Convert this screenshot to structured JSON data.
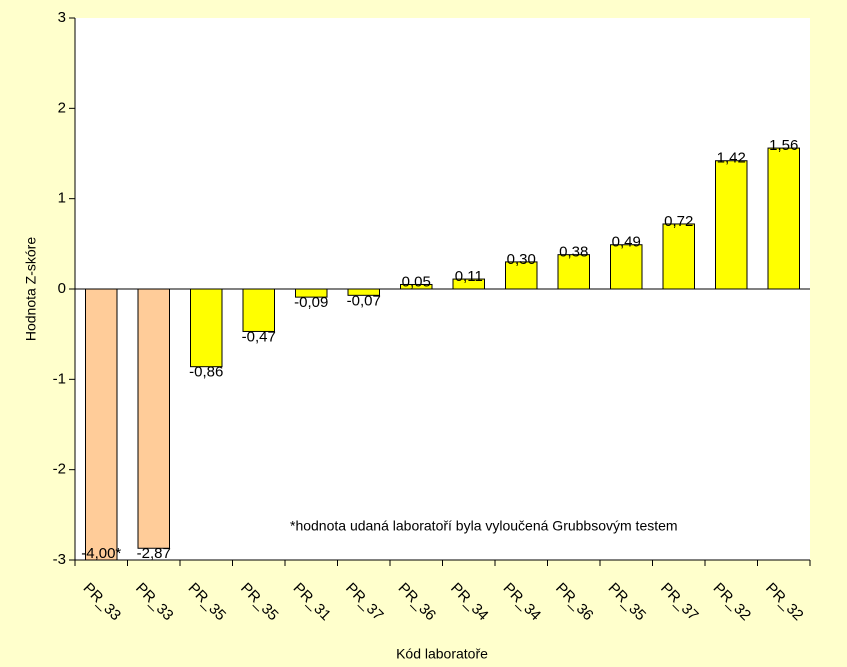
{
  "chart_data": {
    "type": "bar",
    "y_label": "Hodnota Z-skóre",
    "x_label": "Kód laboratoře",
    "annotation": "*hodnota udaná laboratoří byla vyloučená Grubbsovým testem",
    "categories": [
      "PR_33",
      "PR_33",
      "PR_35",
      "PR_35",
      "PR_31",
      "PR_37",
      "PR_36",
      "PR_34",
      "PR_34",
      "PR_36",
      "PR_35",
      "PR_37",
      "PR_32",
      "PR_32"
    ],
    "values": [
      -4.0,
      -2.87,
      -0.86,
      -0.47,
      -0.09,
      -0.07,
      0.05,
      0.11,
      0.3,
      0.38,
      0.49,
      0.72,
      1.42,
      1.56
    ],
    "value_labels": [
      "-4,00*",
      "-2,87",
      "-0,86",
      "-0,47",
      "-0,09",
      "-0,07",
      "0,05",
      "0,11",
      "0,30",
      "0,38",
      "0,49",
      "0,72",
      "1,42",
      "1,56"
    ],
    "colors": [
      "#FFCC99",
      "#FFCC99",
      "#FFFF00",
      "#FFFF00",
      "#FFFF00",
      "#FFFF00",
      "#FFFF00",
      "#FFFF00",
      "#FFFF00",
      "#FFFF00",
      "#FFFF00",
      "#FFFF00",
      "#FFFF00",
      "#FFFF00"
    ],
    "ylim": [
      -3,
      3
    ],
    "yticks": [
      -3,
      -2,
      -1,
      0,
      1,
      2,
      3
    ]
  }
}
